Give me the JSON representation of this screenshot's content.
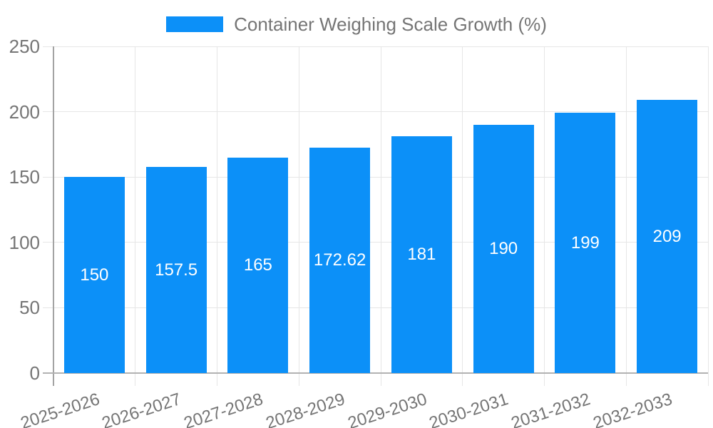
{
  "legend": {
    "label": "Container Weighing Scale Growth (%)"
  },
  "colors": {
    "bar": "#0c90f8",
    "grid": "#e6e6e6",
    "axis_y": "#a3a3a3",
    "axis_x": "#b2b2b2",
    "tick_text": "#757575",
    "bar_label_text": "#ffffff",
    "background": "#ffffff"
  },
  "chart_data": {
    "type": "bar",
    "title": "Container Weighing Scale Growth (%)",
    "categories": [
      "2025-2026",
      "2026-2027",
      "2027-2028",
      "2028-2029",
      "2029-2030",
      "2030-2031",
      "2031-2032",
      "2032-2033"
    ],
    "values": [
      150,
      157.5,
      165,
      172.62,
      181,
      190,
      199,
      209
    ],
    "xlabel": "",
    "ylabel": "",
    "ylim": [
      0,
      250
    ],
    "yticks": [
      0,
      50,
      100,
      150,
      200,
      250
    ],
    "grid": true,
    "legend_position": "top",
    "legend_entries": [
      "Container Weighing Scale Growth (%)"
    ]
  }
}
